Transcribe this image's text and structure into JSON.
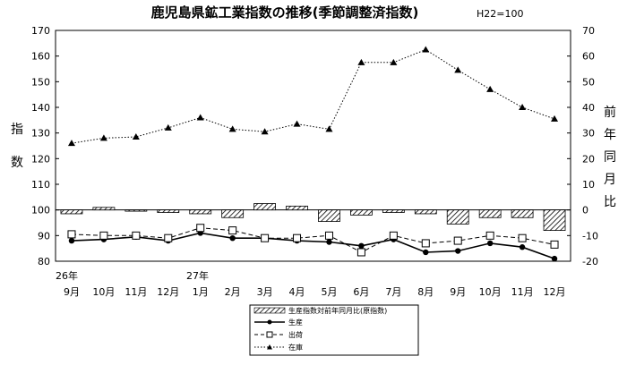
{
  "chart_data": {
    "type": "line",
    "title": "鹿児島県鉱工業指数の推移(季節調整済指数)",
    "base_note": "H22=100",
    "ylabel_left": [
      "指",
      "数"
    ],
    "ylabel_right": [
      "前",
      "年",
      "同",
      "月",
      "比"
    ],
    "year_labels": [
      "26年",
      "27年"
    ],
    "categories": [
      "9月",
      "10月",
      "11月",
      "12月",
      "1月",
      "2月",
      "3月",
      "4月",
      "5月",
      "6月",
      "7月",
      "8月",
      "9月",
      "10月",
      "11月",
      "12月"
    ],
    "ylim_left": [
      80,
      170
    ],
    "yticks_left": [
      80,
      90,
      100,
      110,
      120,
      130,
      140,
      150,
      160,
      170
    ],
    "ylim_right": [
      -20,
      70
    ],
    "yticks_right": [
      -20,
      -10,
      0,
      10,
      20,
      30,
      40,
      50,
      60,
      70
    ],
    "bar_series": {
      "name": "生産指数対前年同月比(原指数)",
      "axis": "right",
      "values": [
        -1.5,
        1.0,
        -0.5,
        -1.0,
        -1.5,
        -3.0,
        2.5,
        1.5,
        -4.5,
        -2.0,
        -1.0,
        -1.5,
        -5.5,
        -3.0,
        -3.0,
        -8.0
      ]
    },
    "series": [
      {
        "name": "生産",
        "axis": "left",
        "style": "solid",
        "marker": "circle",
        "values": [
          88.0,
          88.5,
          89.5,
          88.0,
          91.0,
          89.0,
          89.0,
          88.0,
          87.5,
          86.0,
          88.5,
          83.5,
          84.0,
          87.0,
          85.5,
          81.0
        ]
      },
      {
        "name": "出荷",
        "axis": "left",
        "style": "dashed",
        "marker": "square",
        "values": [
          90.5,
          90.0,
          90.0,
          89.0,
          93.0,
          92.0,
          89.0,
          89.0,
          90.0,
          83.5,
          90.0,
          87.0,
          88.0,
          90.0,
          89.0,
          86.5
        ]
      },
      {
        "name": "在庫",
        "axis": "left",
        "style": "dotted",
        "marker": "triangle",
        "values": [
          126.0,
          128.0,
          128.5,
          132.0,
          136.0,
          131.5,
          130.5,
          133.5,
          131.5,
          157.5,
          157.5,
          162.5,
          154.5,
          147.0,
          140.0,
          135.5
        ]
      }
    ],
    "grid": false,
    "legend_position": "bottom-center"
  }
}
